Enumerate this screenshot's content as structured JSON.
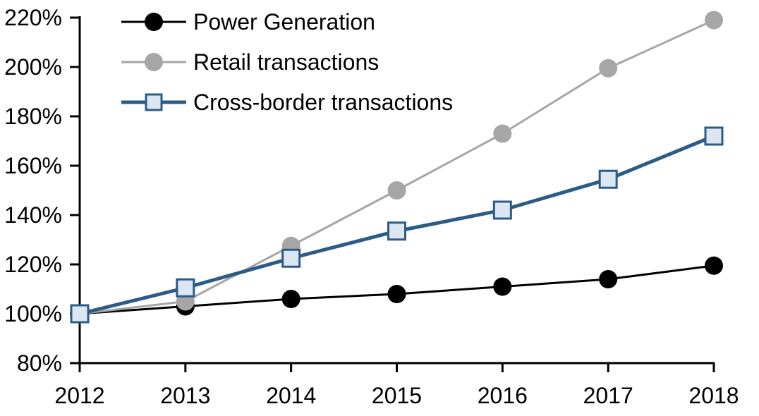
{
  "chart_data": {
    "type": "line",
    "x": [
      "2012",
      "2013",
      "2014",
      "2015",
      "2016",
      "2017",
      "2018"
    ],
    "series": [
      {
        "name": "Power Generation",
        "values": [
          100,
          103,
          106,
          108,
          111,
          114,
          119.5
        ],
        "color": "#000000",
        "marker": "circle",
        "marker_fill": "#000000",
        "line_width": 3
      },
      {
        "name": "Retail transactions",
        "values": [
          100,
          105,
          127.5,
          150,
          173,
          199.5,
          219
        ],
        "color": "#A6A6A6",
        "marker": "circle",
        "marker_fill": "#A6A6A6",
        "line_width": 3
      },
      {
        "name": "Cross-border transactions",
        "values": [
          100,
          110.5,
          122.5,
          133.5,
          142,
          154.5,
          172
        ],
        "color": "#2B5C87",
        "marker": "square",
        "marker_fill": "#DCE6F1",
        "line_width": 5
      }
    ],
    "title": "",
    "xlabel": "",
    "ylabel": "",
    "ylim": [
      80,
      220
    ],
    "ytick_step": 20,
    "y_tick_labels_top_to_bottom": [
      "220%",
      "200%",
      "180%",
      "160%",
      "140%",
      "120%",
      "100%",
      "80%"
    ],
    "ytick_format": "percent",
    "grid": false,
    "legend_position": "top-left",
    "axis_color": "#000000"
  }
}
